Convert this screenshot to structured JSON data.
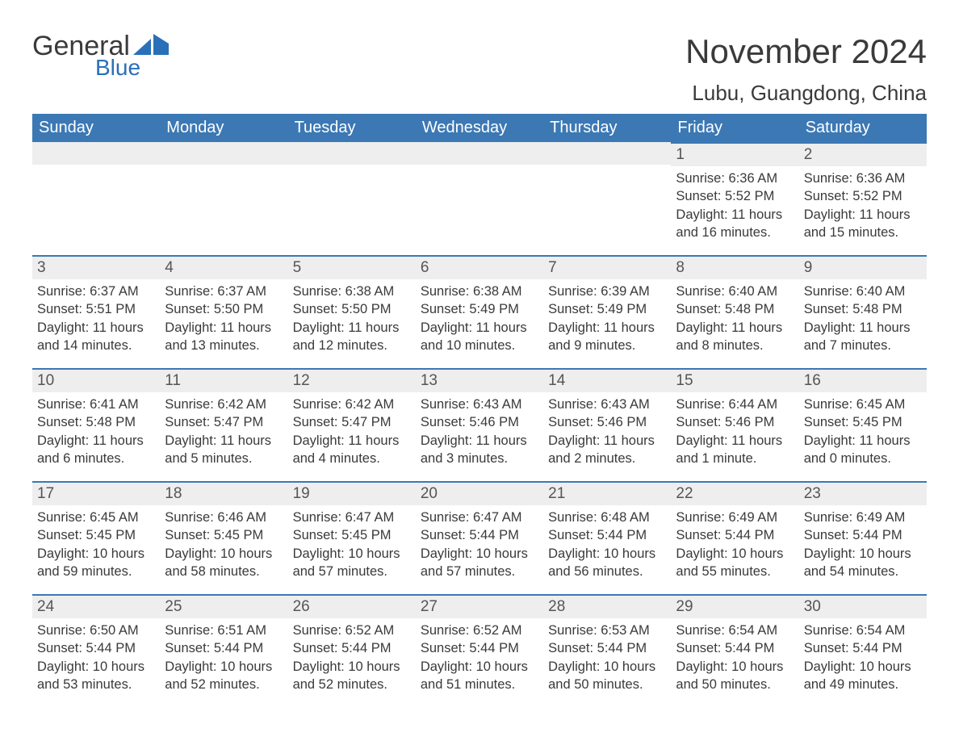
{
  "logo": {
    "word1": "General",
    "word2": "Blue"
  },
  "title": "November 2024",
  "location": "Lubu, Guangdong, China",
  "columns": [
    "Sunday",
    "Monday",
    "Tuesday",
    "Wednesday",
    "Thursday",
    "Friday",
    "Saturday"
  ],
  "colors": {
    "header_bg": "#3c78b4",
    "header_text": "#ffffff",
    "daynum_bg": "#eeeeee",
    "daynum_border": "#3c78b4",
    "text": "#3a3a3a",
    "logo_blue": "#2a70b8",
    "background": "#ffffff"
  },
  "typography": {
    "title_fontsize": 42,
    "location_fontsize": 26,
    "header_fontsize": 20,
    "daynum_fontsize": 19,
    "body_fontsize": 16.5
  },
  "weeks": [
    [
      null,
      null,
      null,
      null,
      null,
      {
        "n": "1",
        "sr": "Sunrise: 6:36 AM",
        "ss": "Sunset: 5:52 PM",
        "d1": "Daylight: 11 hours",
        "d2": "and 16 minutes."
      },
      {
        "n": "2",
        "sr": "Sunrise: 6:36 AM",
        "ss": "Sunset: 5:52 PM",
        "d1": "Daylight: 11 hours",
        "d2": "and 15 minutes."
      }
    ],
    [
      {
        "n": "3",
        "sr": "Sunrise: 6:37 AM",
        "ss": "Sunset: 5:51 PM",
        "d1": "Daylight: 11 hours",
        "d2": "and 14 minutes."
      },
      {
        "n": "4",
        "sr": "Sunrise: 6:37 AM",
        "ss": "Sunset: 5:50 PM",
        "d1": "Daylight: 11 hours",
        "d2": "and 13 minutes."
      },
      {
        "n": "5",
        "sr": "Sunrise: 6:38 AM",
        "ss": "Sunset: 5:50 PM",
        "d1": "Daylight: 11 hours",
        "d2": "and 12 minutes."
      },
      {
        "n": "6",
        "sr": "Sunrise: 6:38 AM",
        "ss": "Sunset: 5:49 PM",
        "d1": "Daylight: 11 hours",
        "d2": "and 10 minutes."
      },
      {
        "n": "7",
        "sr": "Sunrise: 6:39 AM",
        "ss": "Sunset: 5:49 PM",
        "d1": "Daylight: 11 hours",
        "d2": "and 9 minutes."
      },
      {
        "n": "8",
        "sr": "Sunrise: 6:40 AM",
        "ss": "Sunset: 5:48 PM",
        "d1": "Daylight: 11 hours",
        "d2": "and 8 minutes."
      },
      {
        "n": "9",
        "sr": "Sunrise: 6:40 AM",
        "ss": "Sunset: 5:48 PM",
        "d1": "Daylight: 11 hours",
        "d2": "and 7 minutes."
      }
    ],
    [
      {
        "n": "10",
        "sr": "Sunrise: 6:41 AM",
        "ss": "Sunset: 5:48 PM",
        "d1": "Daylight: 11 hours",
        "d2": "and 6 minutes."
      },
      {
        "n": "11",
        "sr": "Sunrise: 6:42 AM",
        "ss": "Sunset: 5:47 PM",
        "d1": "Daylight: 11 hours",
        "d2": "and 5 minutes."
      },
      {
        "n": "12",
        "sr": "Sunrise: 6:42 AM",
        "ss": "Sunset: 5:47 PM",
        "d1": "Daylight: 11 hours",
        "d2": "and 4 minutes."
      },
      {
        "n": "13",
        "sr": "Sunrise: 6:43 AM",
        "ss": "Sunset: 5:46 PM",
        "d1": "Daylight: 11 hours",
        "d2": "and 3 minutes."
      },
      {
        "n": "14",
        "sr": "Sunrise: 6:43 AM",
        "ss": "Sunset: 5:46 PM",
        "d1": "Daylight: 11 hours",
        "d2": "and 2 minutes."
      },
      {
        "n": "15",
        "sr": "Sunrise: 6:44 AM",
        "ss": "Sunset: 5:46 PM",
        "d1": "Daylight: 11 hours",
        "d2": "and 1 minute."
      },
      {
        "n": "16",
        "sr": "Sunrise: 6:45 AM",
        "ss": "Sunset: 5:45 PM",
        "d1": "Daylight: 11 hours",
        "d2": "and 0 minutes."
      }
    ],
    [
      {
        "n": "17",
        "sr": "Sunrise: 6:45 AM",
        "ss": "Sunset: 5:45 PM",
        "d1": "Daylight: 10 hours",
        "d2": "and 59 minutes."
      },
      {
        "n": "18",
        "sr": "Sunrise: 6:46 AM",
        "ss": "Sunset: 5:45 PM",
        "d1": "Daylight: 10 hours",
        "d2": "and 58 minutes."
      },
      {
        "n": "19",
        "sr": "Sunrise: 6:47 AM",
        "ss": "Sunset: 5:45 PM",
        "d1": "Daylight: 10 hours",
        "d2": "and 57 minutes."
      },
      {
        "n": "20",
        "sr": "Sunrise: 6:47 AM",
        "ss": "Sunset: 5:44 PM",
        "d1": "Daylight: 10 hours",
        "d2": "and 57 minutes."
      },
      {
        "n": "21",
        "sr": "Sunrise: 6:48 AM",
        "ss": "Sunset: 5:44 PM",
        "d1": "Daylight: 10 hours",
        "d2": "and 56 minutes."
      },
      {
        "n": "22",
        "sr": "Sunrise: 6:49 AM",
        "ss": "Sunset: 5:44 PM",
        "d1": "Daylight: 10 hours",
        "d2": "and 55 minutes."
      },
      {
        "n": "23",
        "sr": "Sunrise: 6:49 AM",
        "ss": "Sunset: 5:44 PM",
        "d1": "Daylight: 10 hours",
        "d2": "and 54 minutes."
      }
    ],
    [
      {
        "n": "24",
        "sr": "Sunrise: 6:50 AM",
        "ss": "Sunset: 5:44 PM",
        "d1": "Daylight: 10 hours",
        "d2": "and 53 minutes."
      },
      {
        "n": "25",
        "sr": "Sunrise: 6:51 AM",
        "ss": "Sunset: 5:44 PM",
        "d1": "Daylight: 10 hours",
        "d2": "and 52 minutes."
      },
      {
        "n": "26",
        "sr": "Sunrise: 6:52 AM",
        "ss": "Sunset: 5:44 PM",
        "d1": "Daylight: 10 hours",
        "d2": "and 52 minutes."
      },
      {
        "n": "27",
        "sr": "Sunrise: 6:52 AM",
        "ss": "Sunset: 5:44 PM",
        "d1": "Daylight: 10 hours",
        "d2": "and 51 minutes."
      },
      {
        "n": "28",
        "sr": "Sunrise: 6:53 AM",
        "ss": "Sunset: 5:44 PM",
        "d1": "Daylight: 10 hours",
        "d2": "and 50 minutes."
      },
      {
        "n": "29",
        "sr": "Sunrise: 6:54 AM",
        "ss": "Sunset: 5:44 PM",
        "d1": "Daylight: 10 hours",
        "d2": "and 50 minutes."
      },
      {
        "n": "30",
        "sr": "Sunrise: 6:54 AM",
        "ss": "Sunset: 5:44 PM",
        "d1": "Daylight: 10 hours",
        "d2": "and 49 minutes."
      }
    ]
  ]
}
